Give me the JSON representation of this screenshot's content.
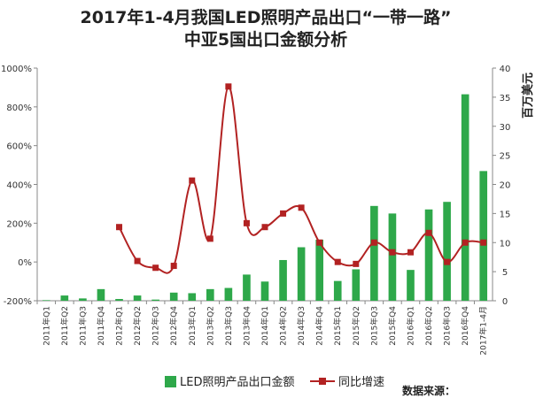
{
  "chart_data": {
    "type": "bar",
    "title_line1": "2017年1-4月我国LED照明产品出口“一带一路”",
    "title_line2": "中亚5国出口金额分析",
    "ylabel_right": "百万美元",
    "categories": [
      "2011年Q1",
      "2011年Q2",
      "2011年Q3",
      "2011年Q4",
      "2012年Q1",
      "2012年Q2",
      "2012年Q3",
      "2012年Q4",
      "2013年Q1",
      "2013年Q2",
      "2013年Q3",
      "2013年Q4",
      "2014年Q1",
      "2014年Q2",
      "2014年Q3",
      "2014年Q4",
      "2015年Q1",
      "2015年Q2",
      "2015年Q3",
      "2015年Q4",
      "2016年Q1",
      "2016年Q2",
      "2016年Q3",
      "2016年Q4",
      "2017年1-4月"
    ],
    "left_axis": {
      "ylim": [
        -200,
        1000
      ],
      "ticks": [
        "1000%",
        "800%",
        "600%",
        "400%",
        "200%",
        "0%",
        "-200%"
      ]
    },
    "right_axis": {
      "ylim": [
        0,
        40
      ],
      "ticks": [
        "40",
        "35",
        "30",
        "25",
        "20",
        "15",
        "10",
        "5",
        "0"
      ]
    },
    "series": [
      {
        "name": "LED照明产品出口金额",
        "axis": "right",
        "type": "bar",
        "color": "#2ea84a",
        "values": [
          0.1,
          0.9,
          0.4,
          2.0,
          0.3,
          0.9,
          0.2,
          1.4,
          1.3,
          2.0,
          2.2,
          4.5,
          3.3,
          7.0,
          9.2,
          10.5,
          3.4,
          5.4,
          16.3,
          15.0,
          5.3,
          15.7,
          17.0,
          35.5,
          22.3
        ]
      },
      {
        "name": "同比增速",
        "axis": "left",
        "type": "line",
        "color": "#b22222",
        "values": [
          null,
          null,
          null,
          null,
          180,
          5,
          -30,
          -20,
          420,
          120,
          905,
          200,
          180,
          250,
          280,
          100,
          0,
          -10,
          100,
          50,
          50,
          150,
          0,
          100,
          100
        ]
      }
    ],
    "legend": {
      "position": "bottom",
      "entries": [
        "LED照明产品出口金额",
        "同比增速"
      ]
    },
    "source_note": "数据来源：",
    "grid": false
  },
  "colors": {
    "bar": "#2ea84a",
    "line": "#b22222",
    "axis": "#888888",
    "title": "#222222"
  }
}
